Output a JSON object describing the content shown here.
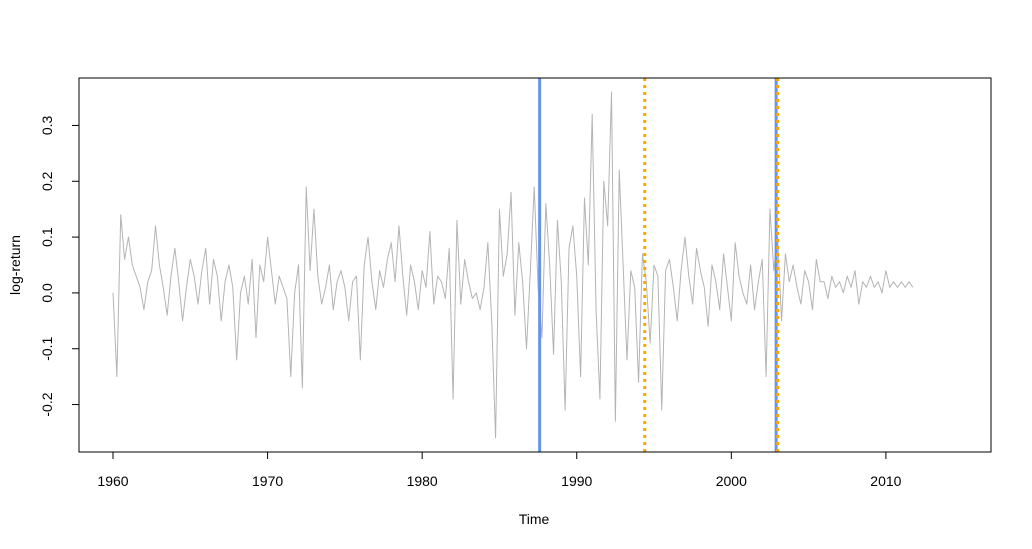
{
  "chart_data": {
    "type": "line",
    "title": "",
    "xlabel": "Time",
    "ylabel": "log-return",
    "xlim": [
      1957.8,
      2016.8
    ],
    "ylim": [
      -0.285,
      0.385
    ],
    "x_ticks": [
      1960,
      1970,
      1980,
      1990,
      2000,
      2010
    ],
    "x_tick_labels": [
      "1960",
      "1970",
      "1980",
      "1990",
      "2000",
      "2010"
    ],
    "y_ticks": [
      -0.2,
      -0.1,
      0.0,
      0.1,
      0.2,
      0.3
    ],
    "y_tick_labels": [
      "-0.2",
      "-0.1",
      "0.0",
      "0.1",
      "0.2",
      "0.3"
    ],
    "grid": false,
    "legend": "none",
    "series": [
      {
        "color": "#b4b4b4",
        "x_start": 1960.0,
        "x_end": 2014.75,
        "x_step": 0.25,
        "values": [
          0.0,
          -0.15,
          0.14,
          0.06,
          0.1,
          0.05,
          0.03,
          0.01,
          -0.03,
          0.02,
          0.04,
          0.12,
          0.05,
          0.01,
          -0.04,
          0.03,
          0.08,
          0.02,
          -0.05,
          0.01,
          0.06,
          0.03,
          -0.02,
          0.04,
          0.08,
          -0.02,
          0.06,
          0.03,
          -0.05,
          0.02,
          0.05,
          0.01,
          -0.12,
          0.0,
          0.03,
          -0.02,
          0.06,
          -0.08,
          0.05,
          0.02,
          0.1,
          0.04,
          -0.02,
          0.03,
          0.01,
          -0.01,
          -0.15,
          0.0,
          0.05,
          -0.17,
          0.19,
          0.04,
          0.15,
          0.03,
          -0.02,
          0.01,
          0.05,
          -0.03,
          0.02,
          0.04,
          0.01,
          -0.05,
          0.02,
          0.03,
          -0.12,
          0.05,
          0.1,
          0.02,
          -0.03,
          0.04,
          0.01,
          0.06,
          0.09,
          0.02,
          0.12,
          0.03,
          -0.04,
          0.05,
          0.02,
          -0.03,
          0.04,
          0.01,
          0.11,
          -0.02,
          0.03,
          0.02,
          -0.01,
          0.08,
          -0.19,
          0.13,
          -0.02,
          0.06,
          0.02,
          -0.01,
          0.0,
          -0.03,
          0.01,
          0.09,
          -0.05,
          -0.26,
          0.15,
          0.03,
          0.07,
          0.18,
          -0.04,
          0.09,
          0.02,
          -0.1,
          0.04,
          0.19,
          0.01,
          -0.08,
          0.16,
          0.05,
          -0.11,
          0.13,
          0.02,
          -0.21,
          0.08,
          0.12,
          0.03,
          -0.15,
          0.17,
          0.05,
          0.32,
          -0.03,
          -0.19,
          0.2,
          0.12,
          0.36,
          -0.23,
          0.22,
          0.05,
          -0.12,
          0.04,
          0.01,
          -0.16,
          0.07,
          0.02,
          -0.09,
          0.05,
          0.03,
          -0.21,
          0.04,
          0.06,
          0.01,
          -0.05,
          0.04,
          0.1,
          0.03,
          -0.02,
          0.08,
          0.04,
          0.01,
          -0.06,
          0.05,
          0.02,
          -0.03,
          0.07,
          0.01,
          -0.05,
          0.09,
          0.03,
          0.0,
          -0.02,
          0.05,
          -0.03,
          0.02,
          0.06,
          -0.15,
          0.15,
          0.04,
          0.1,
          -0.05,
          0.07,
          0.02,
          0.05,
          0.01,
          -0.02,
          0.04,
          0.02,
          -0.03,
          0.06,
          0.02,
          0.02,
          -0.01,
          0.03,
          0.01,
          0.02,
          0.0,
          0.03,
          0.01,
          0.04,
          -0.02,
          0.02,
          0.01,
          0.03,
          0.01,
          0.02,
          0.0,
          0.04,
          0.01,
          0.02,
          0.01,
          0.02,
          0.01,
          0.02,
          0.01
        ]
      }
    ],
    "vlines": [
      {
        "x": 1987.6,
        "color": "#6495ed",
        "style": "solid"
      },
      {
        "x": 2002.9,
        "color": "#6495ed",
        "style": "solid"
      },
      {
        "x": 1994.4,
        "color": "#ffa500",
        "style": "dotted"
      },
      {
        "x": 2003.0,
        "color": "#ffa500",
        "style": "dotted"
      }
    ]
  }
}
